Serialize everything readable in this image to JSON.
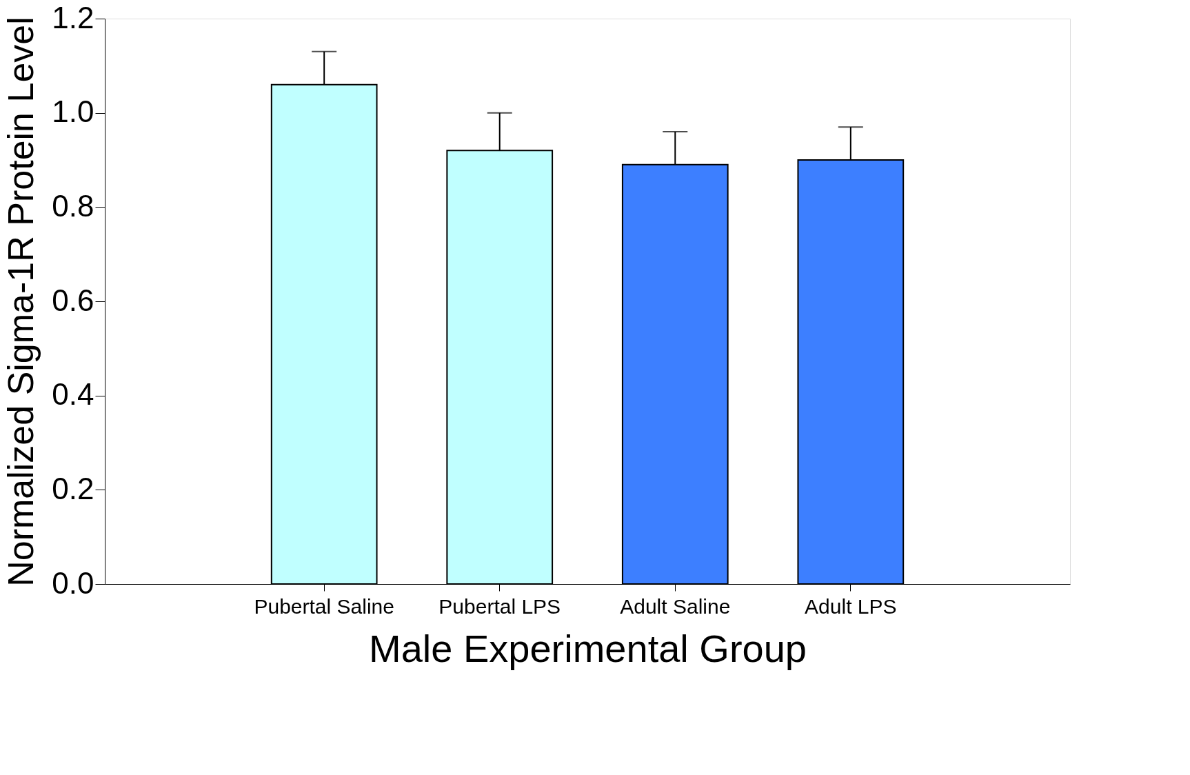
{
  "chart_data": {
    "type": "bar",
    "xlabel": "Male Experimental Group",
    "ylabel": "Normalized Sigma-1R Protein Level",
    "categories": [
      "Pubertal Saline",
      "Pubertal LPS",
      "Adult Saline",
      "Adult LPS"
    ],
    "values": [
      1.06,
      0.92,
      0.89,
      0.9
    ],
    "colors": [
      "#c0ffff",
      "#c0ffff",
      "#3d7fff",
      "#3d7fff"
    ],
    "errors": [
      [
        1.06,
        1.13
      ],
      [
        0.92,
        1.0
      ],
      [
        0.89,
        0.96
      ],
      [
        0.9,
        0.97
      ]
    ],
    "ylim": [
      0,
      1.2
    ],
    "yticks": [
      {
        "value": 0,
        "label": "0.0"
      },
      {
        "value": 0.2,
        "label": "0.2"
      },
      {
        "value": 0.4,
        "label": "0.4"
      },
      {
        "value": 0.6,
        "label": "0.6"
      },
      {
        "value": 0.8,
        "label": "0.8"
      },
      {
        "value": 1.0,
        "label": "1.0"
      },
      {
        "value": 1.2,
        "label": "1.2"
      }
    ],
    "grid": false
  }
}
